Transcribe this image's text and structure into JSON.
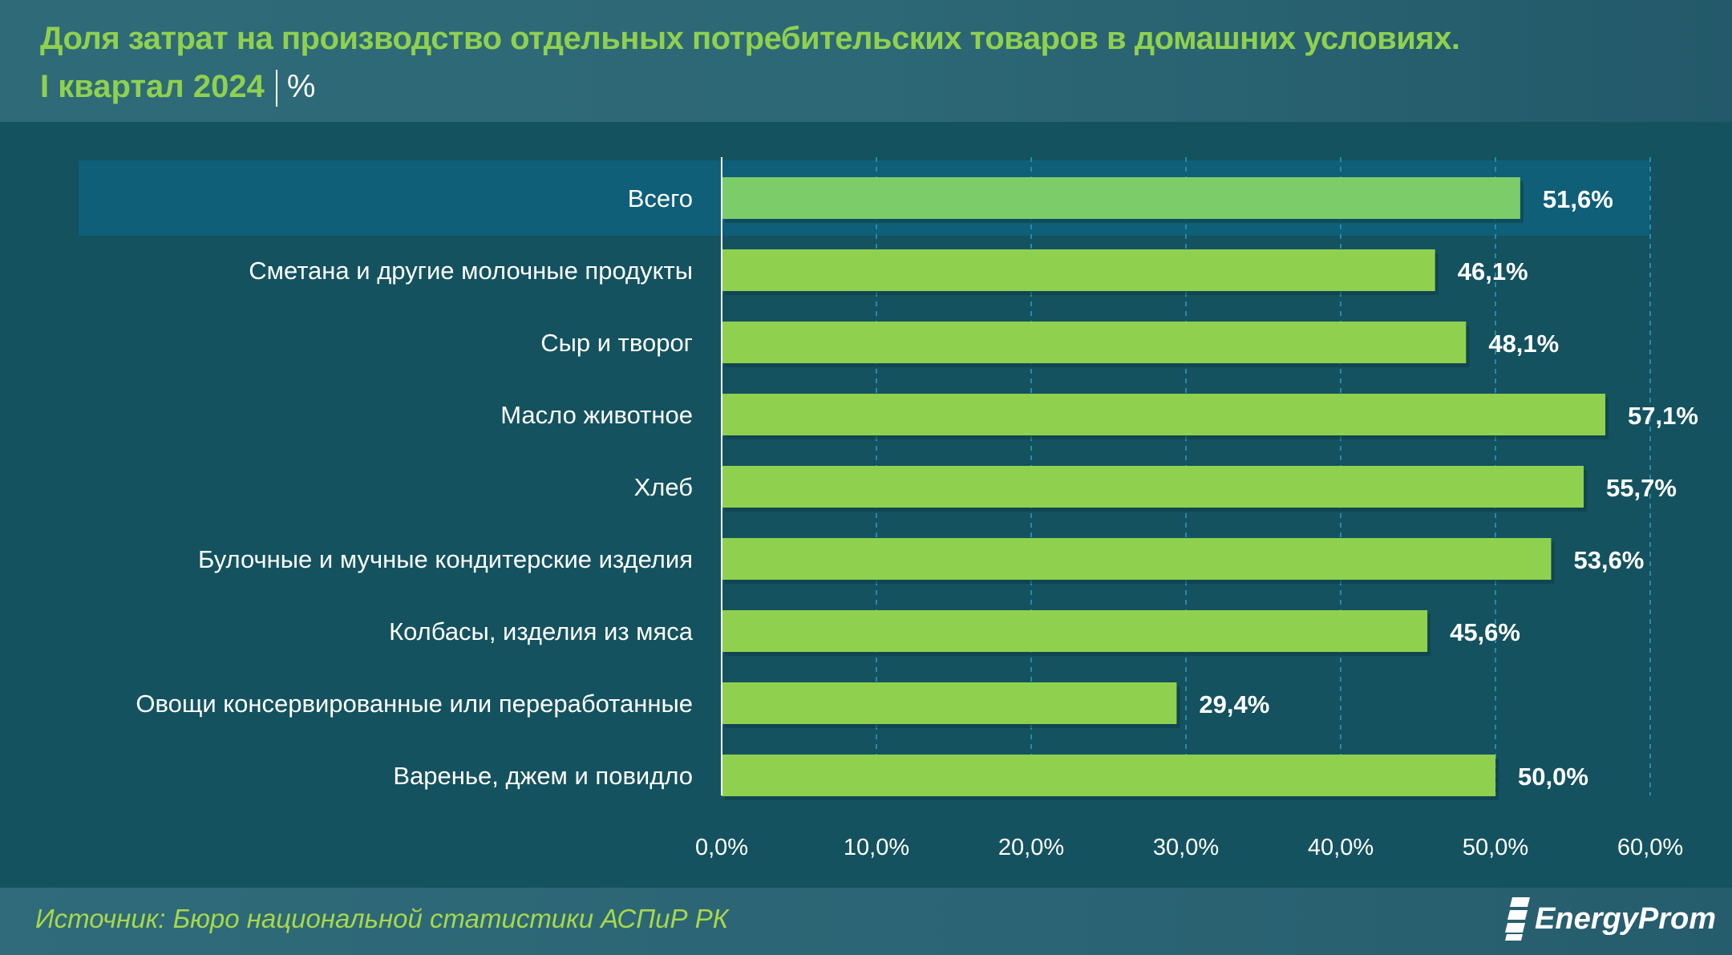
{
  "header": {
    "title": "Доля затрат на производство отдельных потребительских товаров в домашних условиях.",
    "period": "I квартал 2024",
    "unit": "%"
  },
  "chart_data": {
    "type": "bar",
    "orientation": "horizontal",
    "categories": [
      "Всего",
      "Сметана и другие молочные продукты",
      "Сыр и творог",
      "Масло животное",
      "Хлеб",
      "Булочные и мучные кондитерские изделия",
      "Колбасы, изделия из мяса",
      "Овощи консервированные или переработанные",
      "Варенье, джем и повидло"
    ],
    "values": [
      51.6,
      46.1,
      48.1,
      57.1,
      55.7,
      53.6,
      45.6,
      29.4,
      50.0
    ],
    "data_labels": [
      "51,6%",
      "46,1%",
      "48,1%",
      "57,1%",
      "55,7%",
      "53,6%",
      "45,6%",
      "29,4%",
      "50,0%"
    ],
    "xlim": [
      0,
      60
    ],
    "x_ticks": [
      0,
      10,
      20,
      30,
      40,
      50,
      60
    ],
    "x_tick_labels": [
      "0,0%",
      "10,0%",
      "20,0%",
      "30,0%",
      "40,0%",
      "50,0%",
      "60,0%"
    ],
    "grid": "vertical dashed",
    "highlighted_category": "Всего",
    "colors": {
      "bar": "#8fd14f",
      "highlight_bar": "#7dcc6a",
      "highlight_band": "#0f5f78",
      "background": "#14525f"
    }
  },
  "footer": {
    "source": "Источник: Бюро национальной статистики АСПиР РК",
    "logo": "EnergyProm"
  }
}
